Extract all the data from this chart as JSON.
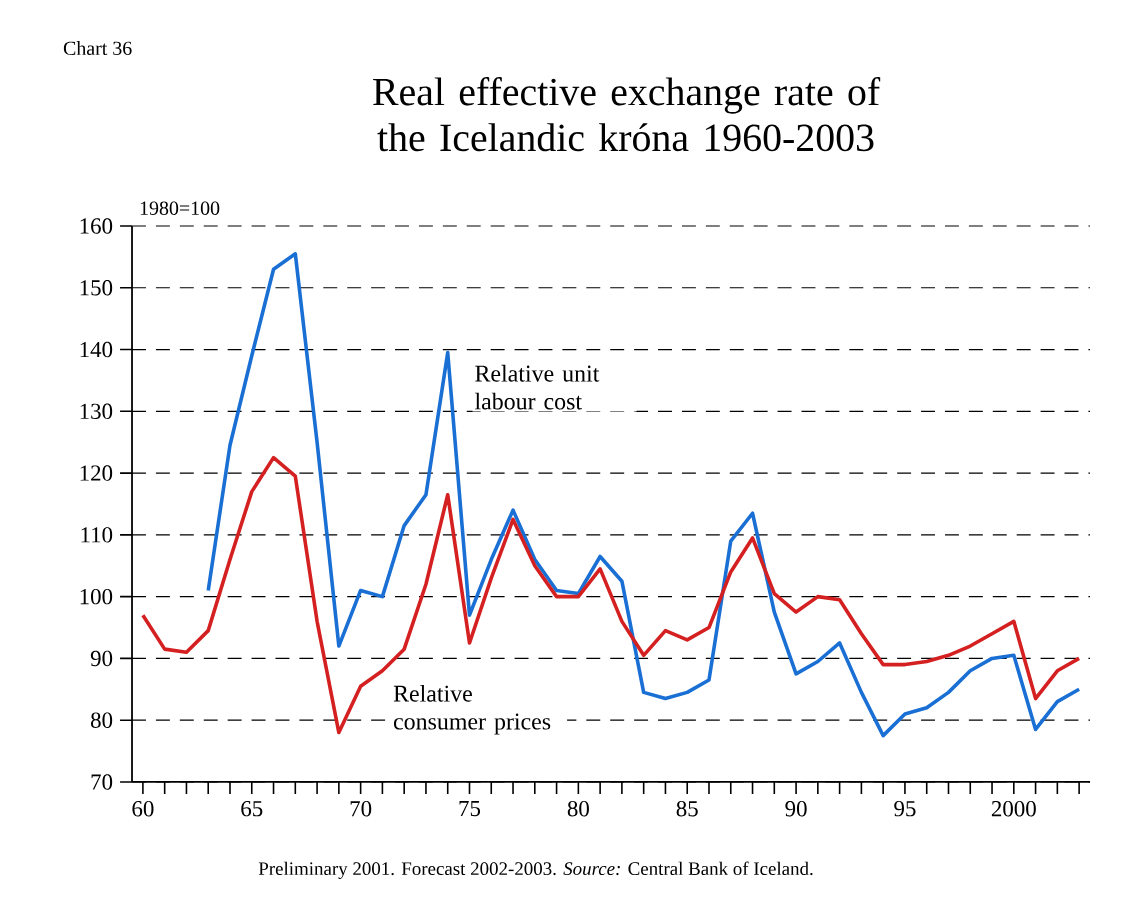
{
  "chart_data": {
    "type": "line",
    "title": "Real effective exchange rate of the Icelandic króna 1960-2003",
    "ylabel": "1980=100",
    "annotations": [
      "Chart 36",
      "Preliminary 2001. Forecast 2002-2003. *Source:* Central Bank of Iceland."
    ],
    "x": [
      1960,
      1961,
      1962,
      1963,
      1964,
      1965,
      1966,
      1967,
      1968,
      1969,
      1970,
      1971,
      1972,
      1973,
      1974,
      1975,
      1976,
      1977,
      1978,
      1979,
      1980,
      1981,
      1982,
      1983,
      1984,
      1985,
      1986,
      1987,
      1988,
      1989,
      1990,
      1991,
      1992,
      1993,
      1994,
      1995,
      1996,
      1997,
      1998,
      1999,
      2000,
      2001,
      2002,
      2003
    ],
    "series": [
      {
        "name": "Relative unit labour cost",
        "color": "#1a6fd4",
        "values": [
          null,
          null,
          null,
          101,
          124.5,
          139,
          153,
          155.5,
          125,
          92,
          101,
          100,
          111.5,
          116.5,
          139.5,
          97,
          106,
          114,
          106,
          101,
          100.5,
          106.5,
          102.5,
          84.5,
          83.5,
          84.5,
          86.5,
          109,
          113.5,
          97.5,
          87.5,
          89.5,
          92.5,
          84.5,
          77.5,
          81,
          82,
          84.5,
          88,
          90,
          90.5,
          78.5,
          83,
          85
        ]
      },
      {
        "name": "Relative consumer prices",
        "color": "#d42020",
        "values": [
          97,
          91.5,
          91,
          94.5,
          106,
          117,
          122.5,
          119.5,
          96,
          78,
          85.5,
          88,
          91.5,
          102,
          116.5,
          92.5,
          103,
          112.5,
          105,
          100,
          100,
          104.5,
          96,
          90.5,
          94.5,
          93,
          95,
          104,
          109.5,
          100.5,
          97.5,
          100,
          99.5,
          94,
          89,
          89,
          89.5,
          90.5,
          92,
          94,
          96,
          83.5,
          88,
          90
        ]
      }
    ],
    "xlim": [
      1959.5,
      2003.5
    ],
    "ylim": [
      70,
      160
    ],
    "xticks": [
      {
        "value": 1960,
        "label": "60"
      },
      {
        "value": 1961,
        "label": null
      },
      {
        "value": 1962,
        "label": null
      },
      {
        "value": 1963,
        "label": null
      },
      {
        "value": 1964,
        "label": null
      },
      {
        "value": 1965,
        "label": "65"
      },
      {
        "value": 1966,
        "label": null
      },
      {
        "value": 1967,
        "label": null
      },
      {
        "value": 1968,
        "label": null
      },
      {
        "value": 1969,
        "label": null
      },
      {
        "value": 1970,
        "label": "70"
      },
      {
        "value": 1971,
        "label": null
      },
      {
        "value": 1972,
        "label": null
      },
      {
        "value": 1973,
        "label": null
      },
      {
        "value": 1974,
        "label": null
      },
      {
        "value": 1975,
        "label": "75"
      },
      {
        "value": 1976,
        "label": null
      },
      {
        "value": 1977,
        "label": null
      },
      {
        "value": 1978,
        "label": null
      },
      {
        "value": 1979,
        "label": null
      },
      {
        "value": 1980,
        "label": "80"
      },
      {
        "value": 1981,
        "label": null
      },
      {
        "value": 1982,
        "label": null
      },
      {
        "value": 1983,
        "label": null
      },
      {
        "value": 1984,
        "label": null
      },
      {
        "value": 1985,
        "label": "85"
      },
      {
        "value": 1986,
        "label": null
      },
      {
        "value": 1987,
        "label": null
      },
      {
        "value": 1988,
        "label": null
      },
      {
        "value": 1989,
        "label": null
      },
      {
        "value": 1990,
        "label": "90"
      },
      {
        "value": 1991,
        "label": null
      },
      {
        "value": 1992,
        "label": null
      },
      {
        "value": 1993,
        "label": null
      },
      {
        "value": 1994,
        "label": null
      },
      {
        "value": 1995,
        "label": "95"
      },
      {
        "value": 1996,
        "label": null
      },
      {
        "value": 1997,
        "label": null
      },
      {
        "value": 1998,
        "label": null
      },
      {
        "value": 1999,
        "label": null
      },
      {
        "value": 2000,
        "label": "2000"
      },
      {
        "value": 2001,
        "label": null
      },
      {
        "value": 2002,
        "label": null
      },
      {
        "value": 2003,
        "label": null
      }
    ],
    "yticks": [
      70,
      80,
      90,
      100,
      110,
      120,
      130,
      140,
      150,
      160
    ],
    "grid": "y",
    "legend": false,
    "marker": "none",
    "line_style": "solid"
  }
}
